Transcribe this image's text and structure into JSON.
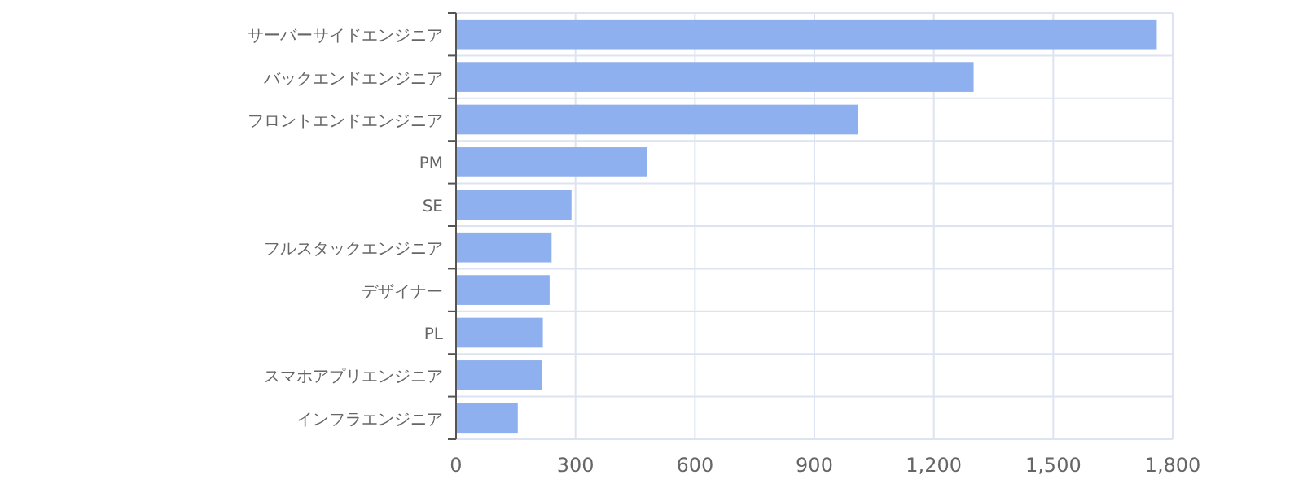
{
  "chart_data": {
    "type": "bar",
    "orientation": "horizontal",
    "categories": [
      "サーバーサイドエンジニア",
      "バックエンドエンジニア",
      "フロントエンドエンジニア",
      "PM",
      "SE",
      "フルスタックエンジニア",
      "デザイナー",
      "PL",
      "スマホアプリエンジニア",
      "インフラエンジニア"
    ],
    "values": [
      1760,
      1300,
      1010,
      480,
      290,
      240,
      235,
      218,
      215,
      155
    ],
    "color": "#8fb0ee",
    "xlim": [
      0,
      1800
    ],
    "xticks": [
      0,
      {
        "value": 300,
        "label": "300"
      },
      {
        "value": 600,
        "label": "600"
      },
      {
        "value": 900,
        "label": "900"
      },
      {
        "value": 1200,
        "label": "1,200"
      },
      {
        "value": 1500,
        "label": "1,500"
      },
      {
        "value": 1800,
        "label": "1,800"
      }
    ],
    "grid": true
  }
}
